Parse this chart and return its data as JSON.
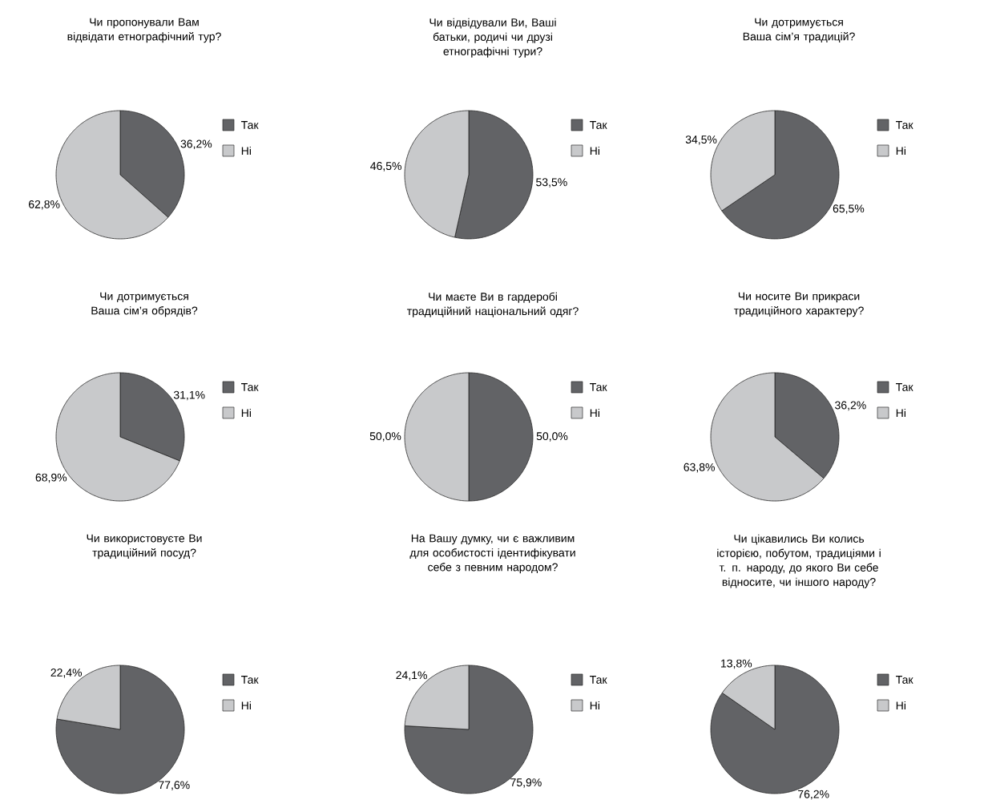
{
  "chart_data": [
    {
      "type": "pie",
      "title": "Чи пропонували Вам відвідати етнографічний тур?",
      "categories": [
        "Так",
        "Ні"
      ],
      "values": [
        36.2,
        62.8
      ],
      "colors": [
        "#626366",
        "#c8c9cb"
      ],
      "value_labels": [
        "36,2%",
        "62,8%"
      ],
      "legend": "right"
    },
    {
      "type": "pie",
      "title": "Чи відвідували Ви, Ваші батьки, родичі чи друзі етнографічні тури?",
      "categories": [
        "Так",
        "Ні"
      ],
      "values": [
        53.5,
        46.5
      ],
      "colors": [
        "#626366",
        "#c8c9cb"
      ],
      "value_labels": [
        "53,5%",
        "46,5%"
      ],
      "legend": "right"
    },
    {
      "type": "pie",
      "title": "Чи дотримується Ваша сім’я традицій?",
      "categories": [
        "Так",
        "Ні"
      ],
      "values": [
        65.5,
        34.5
      ],
      "colors": [
        "#626366",
        "#c8c9cb"
      ],
      "value_labels": [
        "65,5%",
        "34,5%"
      ],
      "legend": "right"
    },
    {
      "type": "pie",
      "title": "Чи дотримується Ваша сім’я обрядів?",
      "categories": [
        "Так",
        "Ні"
      ],
      "values": [
        31.1,
        68.9
      ],
      "colors": [
        "#626366",
        "#c8c9cb"
      ],
      "value_labels": [
        "31,1%",
        "68,9%"
      ],
      "legend": "right"
    },
    {
      "type": "pie",
      "title": "Чи маєте Ви в гардеробі традиційний національний одяг?",
      "categories": [
        "Так",
        "Ні"
      ],
      "values": [
        50.0,
        50.0
      ],
      "colors": [
        "#626366",
        "#c8c9cb"
      ],
      "value_labels": [
        "50,0%",
        "50,0%"
      ],
      "legend": "right"
    },
    {
      "type": "pie",
      "title": "Чи носите Ви прикраси традиційного характеру?",
      "categories": [
        "Так",
        "Ні"
      ],
      "values": [
        36.2,
        63.8
      ],
      "colors": [
        "#626366",
        "#c8c9cb"
      ],
      "value_labels": [
        "36,2%",
        "63,8%"
      ],
      "legend": "right"
    },
    {
      "type": "pie",
      "title": "Чи використовуєте Ви традиційний посуд?",
      "categories": [
        "Так",
        "Ні"
      ],
      "values": [
        77.6,
        22.4
      ],
      "colors": [
        "#626366",
        "#c8c9cb"
      ],
      "value_labels": [
        "77,6%",
        "22,4%"
      ],
      "legend": "right"
    },
    {
      "type": "pie",
      "title": "На Вашу думку, чи є важливим для особистості ідентифікувати себе з певним народом?",
      "categories": [
        "Так",
        "Ні"
      ],
      "values": [
        75.9,
        24.1
      ],
      "colors": [
        "#626366",
        "#c8c9cb"
      ],
      "value_labels": [
        "75,9%",
        "24,1%"
      ],
      "legend": "right"
    },
    {
      "type": "pie",
      "title": "Чи цікавились Ви колись історією, побутом, традиціями і т. п. народу, до якого Ви себе відносите, чи іншого народу?",
      "categories": [
        "Так",
        "Ні"
      ],
      "values": [
        76.2,
        13.8
      ],
      "colors": [
        "#626366",
        "#c8c9cb"
      ],
      "value_labels": [
        "76,2%",
        "13,8%"
      ],
      "legend": "right"
    }
  ]
}
